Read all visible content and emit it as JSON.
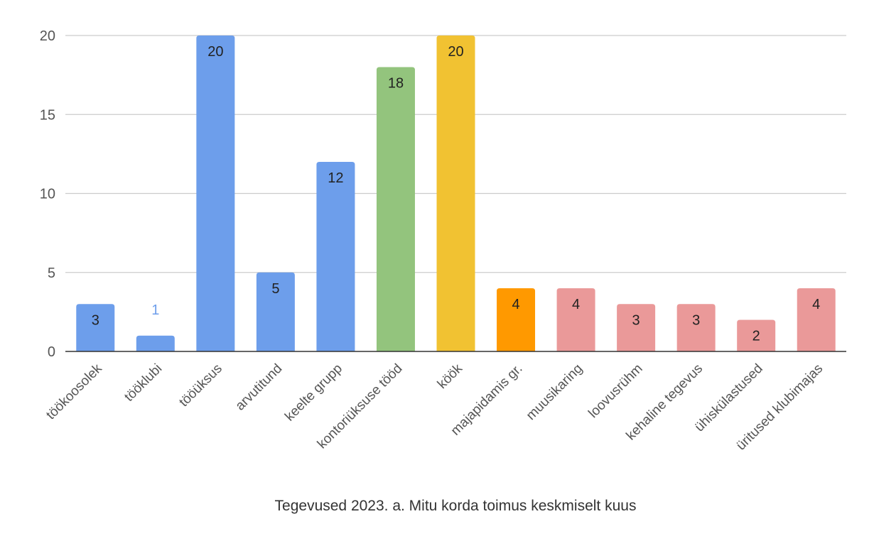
{
  "chart_data": {
    "type": "bar",
    "title": "",
    "xlabel": "Tegevused 2023. a. Mitu korda toimus keskmiselt kuus",
    "ylabel": "",
    "ylim": [
      0,
      20
    ],
    "yticks": [
      0,
      5,
      10,
      15,
      20
    ],
    "grid": true,
    "legend": "none",
    "categories": [
      "töökoosolek",
      "tööklubi",
      "tööüksus",
      "arvutitund",
      "keelte grupp",
      "kontoriüksuse tööd",
      "köök",
      "majapidamis gr.",
      "muusikaring",
      "loovusrühm",
      "kehaline tegevus",
      "ühiskülastused",
      "üritused klubimajas"
    ],
    "values": [
      3,
      1,
      20,
      5,
      12,
      18,
      20,
      4,
      4,
      3,
      3,
      2,
      4
    ],
    "colors": [
      "#6d9eeb",
      "#6d9eeb",
      "#6d9eeb",
      "#6d9eeb",
      "#6d9eeb",
      "#93c47d",
      "#f1c232",
      "#ff9900",
      "#ea9999",
      "#ea9999",
      "#ea9999",
      "#ea9999",
      "#ea9999"
    ],
    "data_labels": [
      "3",
      "1",
      "20",
      "5",
      "12",
      "18",
      "20",
      "4",
      "4",
      "3",
      "3",
      "2",
      "4"
    ]
  }
}
